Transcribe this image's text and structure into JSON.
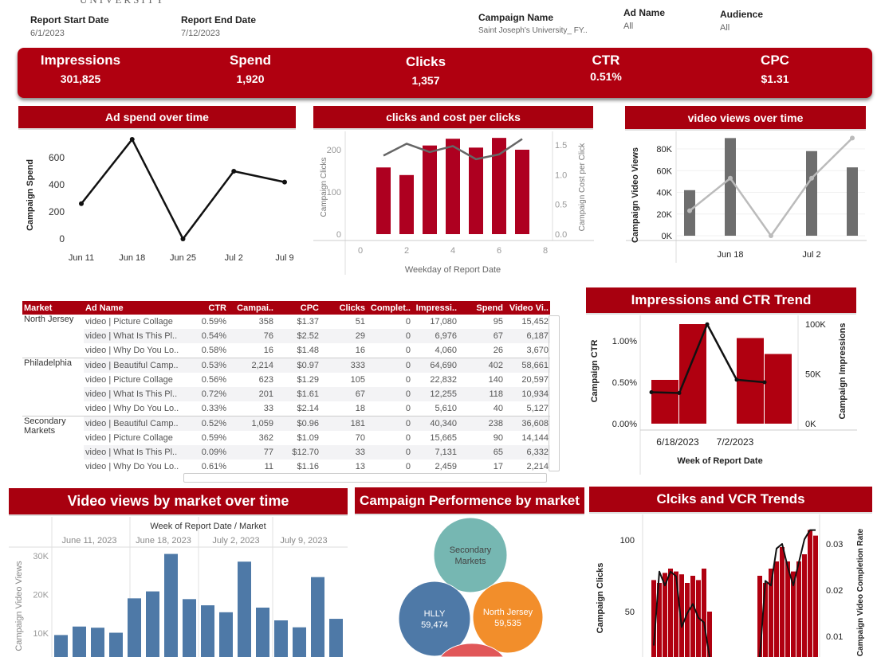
{
  "logo": {
    "text": "UNIVERSITY"
  },
  "filters": {
    "start": {
      "label": "Report Start Date",
      "value": "6/1/2023"
    },
    "end": {
      "label": "Report End Date",
      "value": "7/12/2023"
    },
    "campaign": {
      "label": "Campaign Name",
      "value": "Saint Joseph's University_ FY.."
    },
    "ad": {
      "label": "Ad Name",
      "value": "All"
    },
    "audience": {
      "label": "Audience",
      "value": "All"
    }
  },
  "kpis": [
    {
      "label": "Impressions",
      "value": "301,825"
    },
    {
      "label": "Spend",
      "value": "1,920"
    },
    {
      "label": "Clicks",
      "value": "1,357"
    },
    {
      "label": "CTR",
      "value": "0.51%"
    },
    {
      "label": "CPC",
      "value": "$1.31"
    }
  ],
  "panels": {
    "ad_spend": "Ad spend over time",
    "clicks_cpc": "clicks and cost per clicks",
    "video_views": "video views over time",
    "impr_ctr": "Impressions and CTR Trend",
    "video_market": "Video views by market over time",
    "campaign_perf": "Campaign Performence by market",
    "clicks_vcr": "Clciks and VCR Trends"
  },
  "colors": {
    "brand": "#a8000f",
    "kpi": "#b00010",
    "bar_blue": "#4e79a7",
    "teal": "#76b7b2",
    "orange": "#f28e2b",
    "red": "#e15759"
  },
  "table": {
    "columns": [
      "Market",
      "Ad Name",
      "CTR",
      "Campai..",
      "CPC",
      "Clicks",
      "Complet..",
      "Impressi..",
      "Spend",
      "Video Vi.."
    ],
    "rows": [
      [
        "North Jersey",
        "video | Picture Collage",
        "0.59%",
        "358",
        "$1.37",
        "51",
        "0",
        "17,080",
        "95",
        "15,452"
      ],
      [
        "",
        "video | What Is This Pl..",
        "0.54%",
        "76",
        "$2.52",
        "29",
        "0",
        "6,976",
        "67",
        "6,187"
      ],
      [
        "",
        "video | Why Do You Lo..",
        "0.58%",
        "16",
        "$1.48",
        "16",
        "0",
        "4,060",
        "26",
        "3,670"
      ],
      [
        "Philadelphia",
        "video | Beautiful Camp..",
        "0.53%",
        "2,214",
        "$0.97",
        "333",
        "0",
        "64,690",
        "402",
        "58,661"
      ],
      [
        "",
        "video | Picture Collage",
        "0.56%",
        "623",
        "$1.29",
        "105",
        "0",
        "22,832",
        "140",
        "20,597"
      ],
      [
        "",
        "video | What Is This Pl..",
        "0.72%",
        "201",
        "$1.61",
        "67",
        "0",
        "12,255",
        "118",
        "10,934"
      ],
      [
        "",
        "video | Why Do You Lo..",
        "0.33%",
        "33",
        "$2.14",
        "18",
        "0",
        "5,610",
        "40",
        "5,127"
      ],
      [
        "Secondary Markets",
        "video | Beautiful Camp..",
        "0.52%",
        "1,059",
        "$0.96",
        "181",
        "0",
        "40,340",
        "238",
        "36,608"
      ],
      [
        "",
        "video | Picture Collage",
        "0.59%",
        "362",
        "$1.09",
        "70",
        "0",
        "15,665",
        "90",
        "14,144"
      ],
      [
        "",
        "video | What Is This Pl..",
        "0.09%",
        "77",
        "$12.70",
        "33",
        "0",
        "7,131",
        "65",
        "6,332"
      ],
      [
        "",
        "video | Why Do You Lo..",
        "0.61%",
        "11",
        "$1.16",
        "13",
        "0",
        "2,459",
        "17",
        "2,214"
      ]
    ]
  },
  "chart_data": [
    {
      "id": "ad_spend",
      "type": "line",
      "categories": [
        "Jun 11",
        "Jun 18",
        "Jun 25",
        "Jul 2",
        "Jul 9"
      ],
      "tick_labels": [
        "Jun 11",
        "Jun 18",
        "Jun 25",
        "Jul 2",
        "Jul 9"
      ],
      "values": [
        260,
        735,
        0,
        500,
        420
      ],
      "ylabel": "Campaign Spend",
      "yticks": [
        0,
        200,
        400,
        600
      ],
      "ylim": [
        0,
        600
      ]
    },
    {
      "id": "clicks_cpc",
      "type": "bar",
      "x": [
        1,
        2,
        3,
        4,
        5,
        6,
        7
      ],
      "xticks": [
        0,
        2,
        4,
        6,
        8
      ],
      "xlabel": "Weekday of Report Date",
      "series": [
        {
          "name": "Campaign Clicks",
          "type": "bar",
          "values": [
            158,
            140,
            210,
            226,
            205,
            228,
            200
          ]
        },
        {
          "name": "Campaign Cost per Click",
          "type": "line",
          "values": [
            1.32,
            1.52,
            1.38,
            1.48,
            1.26,
            1.34,
            1.6
          ]
        }
      ],
      "ylabel": "Campaign Clicks",
      "y2label": "Campaign Cost per Click",
      "yticks": [
        0,
        100,
        200
      ],
      "y2ticks": [
        "0.0",
        "0.5",
        "1.0",
        "1.5"
      ]
    },
    {
      "id": "video_views",
      "type": "bar",
      "categories": [
        "Jun 11",
        "Jun 18",
        "Jun 25",
        "Jul 2",
        "Jul 9"
      ],
      "tick_labels": [
        "Jun 18",
        "Jul 2"
      ],
      "series": [
        {
          "type": "bar",
          "values": [
            42000,
            90000,
            0,
            78000,
            63000
          ]
        },
        {
          "type": "line",
          "values": [
            23000,
            53000,
            0,
            53000,
            90000
          ]
        }
      ],
      "ylabel": "Campaign Video Views",
      "yticks": [
        "0K",
        "20K",
        "40K",
        "60K",
        "80K"
      ]
    },
    {
      "id": "impr_ctr",
      "type": "bar",
      "xlabel": "Week of Report Date",
      "tick_labels": [
        "6/18/2023",
        "7/2/2023"
      ],
      "series": [
        {
          "name": "Campaign Impressions",
          "type": "bar",
          "values": [
            44000,
            100000,
            null,
            86000,
            70000
          ]
        },
        {
          "name": "Campaign CTR",
          "type": "line",
          "values": [
            0.38,
            0.37,
            1.2,
            0.53,
            0.5
          ]
        }
      ],
      "ylabel": "Campaign CTR",
      "y2label": "Campaign Impressions",
      "yticks": [
        "0.00%",
        "0.50%",
        "1.00%"
      ],
      "y2ticks": [
        "0K",
        "50K",
        "100K"
      ]
    },
    {
      "id": "video_market",
      "type": "bar",
      "header": "Week of Report Date / Market",
      "groups": [
        "June 11, 2023",
        "June 18, 2023",
        "July 2, 2023",
        "July 9, 2023"
      ],
      "values": [
        [
          9500,
          11700,
          11400,
          10100
        ],
        [
          19000,
          20800,
          30500,
          18800
        ],
        [
          17200,
          15400,
          28500,
          16600
        ],
        [
          13300,
          11500,
          24500,
          13700
        ]
      ],
      "ylabel": "Campaign Video Views",
      "yticks": [
        "10K",
        "20K",
        "30K"
      ]
    },
    {
      "id": "campaign_perf",
      "type": "bubble",
      "items": [
        {
          "label": "Secondary Markets",
          "value": null,
          "color": "#76b7b2"
        },
        {
          "label": "HLLY",
          "value": "59,474",
          "color": "#4e79a7"
        },
        {
          "label": "North Jersey",
          "value": "59,535",
          "color": "#f28e2b"
        },
        {
          "label": "",
          "value": null,
          "color": "#e15759"
        }
      ]
    },
    {
      "id": "clicks_vcr",
      "type": "bar",
      "series": [
        {
          "name": "Campaign Clicks",
          "type": "bar",
          "values": [
            [
              72,
              70,
              77,
              80,
              78,
              76,
              70,
              75,
              72,
              80,
              50
            ],
            [
              75,
              70,
              80,
              85,
              95,
              85,
              78,
              85,
              90,
              107,
              103
            ]
          ]
        },
        {
          "name": "Campaign Video Completion Rate",
          "type": "line",
          "values": [
            [
              0.008,
              0.024,
              0.021,
              0.024,
              0.023,
              0.012,
              0.015,
              0.017,
              0.014,
              0.013,
              0.0
            ],
            [
              0.0,
              0.022,
              0.021,
              0.029,
              0.03,
              0.025,
              0.021,
              0.026,
              0.031,
              0.033,
              0.033
            ]
          ]
        }
      ],
      "ylabel": "Campaign Clicks",
      "y2label": "Campaign Video Completion Rate",
      "yticks": [
        "50",
        "100"
      ],
      "y2ticks": [
        "0.01",
        "0.02",
        "0.03"
      ]
    }
  ]
}
